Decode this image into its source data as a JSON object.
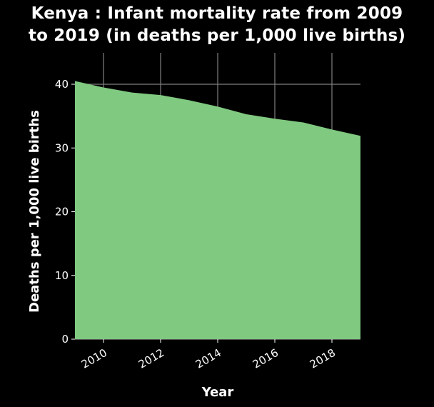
{
  "chart_data": {
    "type": "area",
    "title_line1": "Kenya : Infant mortality rate from 2009",
    "title_line2": "to 2019 (in deaths per 1,000 live births)",
    "xlabel": "Year",
    "ylabel": "Deaths per 1,000 live births",
    "x": [
      2009,
      2010,
      2011,
      2012,
      2013,
      2014,
      2015,
      2016,
      2017,
      2018,
      2019
    ],
    "values": [
      40.5,
      39.5,
      38.7,
      38.3,
      37.5,
      36.5,
      35.3,
      34.6,
      34.0,
      32.9,
      31.9
    ],
    "xlim": [
      2009,
      2019
    ],
    "ylim": [
      0,
      40
    ],
    "xticks": [
      2010,
      2012,
      2014,
      2016,
      2018
    ],
    "yticks": [
      0,
      10,
      20,
      30,
      40
    ],
    "grid": true,
    "fill_color": "#80c980",
    "grid_color": "#808080",
    "background": "#000000"
  }
}
